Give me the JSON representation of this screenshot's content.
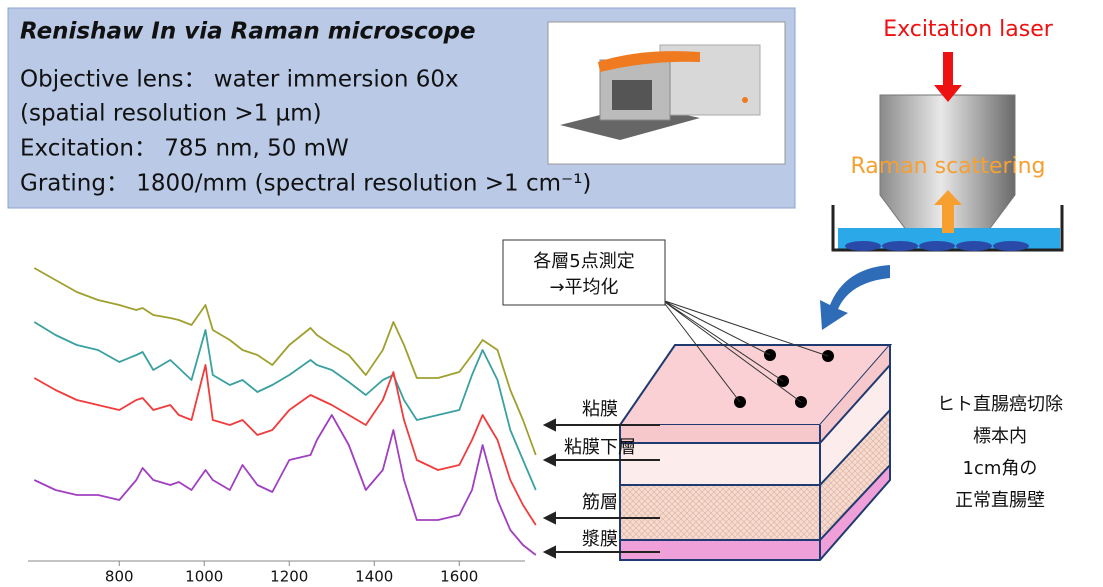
{
  "spec": {
    "title": "Renishaw In via Raman microscope",
    "lines": [
      "Objective lens： water immersion 60x",
      "(spatial resolution >1 µm)",
      "Excitation： 785 nm, 50 mW",
      "Grating： 1800/mm (spectral resolution >1 cm⁻¹)"
    ]
  },
  "diagram": {
    "laser": "Excitation laser",
    "scattering": "Raman scattering"
  },
  "callout": {
    "lines": [
      "各層5点測定",
      "→平均化"
    ]
  },
  "layers": [
    "粘膜",
    "粘膜下層",
    "筋層",
    "漿膜"
  ],
  "sample": {
    "lines": [
      "ヒト直腸癌切除",
      "標本内",
      "1cm角の",
      "正常直腸壁"
    ]
  },
  "chart_data": {
    "type": "line",
    "x": [
      600,
      650,
      700,
      750,
      800,
      840,
      855,
      880,
      920,
      940,
      970,
      1003,
      1020,
      1060,
      1090,
      1125,
      1160,
      1200,
      1250,
      1265,
      1300,
      1340,
      1380,
      1420,
      1445,
      1470,
      1500,
      1550,
      1600,
      1630,
      1655,
      1690,
      1720,
      1750,
      1780
    ],
    "xlim": [
      590,
      1790
    ],
    "xticks": [
      800,
      1000,
      1200,
      1400,
      1600
    ],
    "ylim": [
      0,
      300
    ],
    "series": [
      {
        "color": "#a0a030",
        "values": [
          292,
          280,
          268,
          260,
          255,
          250,
          252,
          245,
          242,
          240,
          235,
          255,
          230,
          220,
          210,
          205,
          195,
          215,
          232,
          225,
          215,
          205,
          185,
          210,
          238,
          215,
          182,
          182,
          188,
          205,
          220,
          210,
          170,
          140,
          105
        ]
      },
      {
        "color": "#3aa0a0",
        "values": [
          238,
          225,
          215,
          210,
          198,
          205,
          208,
          190,
          200,
          192,
          180,
          230,
          185,
          175,
          180,
          168,
          175,
          185,
          200,
          195,
          190,
          178,
          165,
          180,
          185,
          160,
          140,
          145,
          150,
          185,
          210,
          180,
          130,
          100,
          70
        ]
      },
      {
        "color": "#f03c3c",
        "values": [
          182,
          170,
          160,
          155,
          150,
          160,
          162,
          150,
          155,
          145,
          140,
          195,
          140,
          135,
          140,
          125,
          130,
          150,
          165,
          162,
          155,
          145,
          135,
          160,
          188,
          140,
          100,
          90,
          95,
          120,
          145,
          120,
          80,
          55,
          35
        ]
      },
      {
        "color": "#a040c0",
        "values": [
          80,
          70,
          65,
          65,
          60,
          80,
          92,
          80,
          75,
          78,
          70,
          90,
          80,
          70,
          95,
          75,
          68,
          100,
          105,
          120,
          145,
          115,
          70,
          90,
          130,
          80,
          40,
          40,
          45,
          70,
          115,
          60,
          30,
          15,
          5
        ]
      }
    ]
  }
}
